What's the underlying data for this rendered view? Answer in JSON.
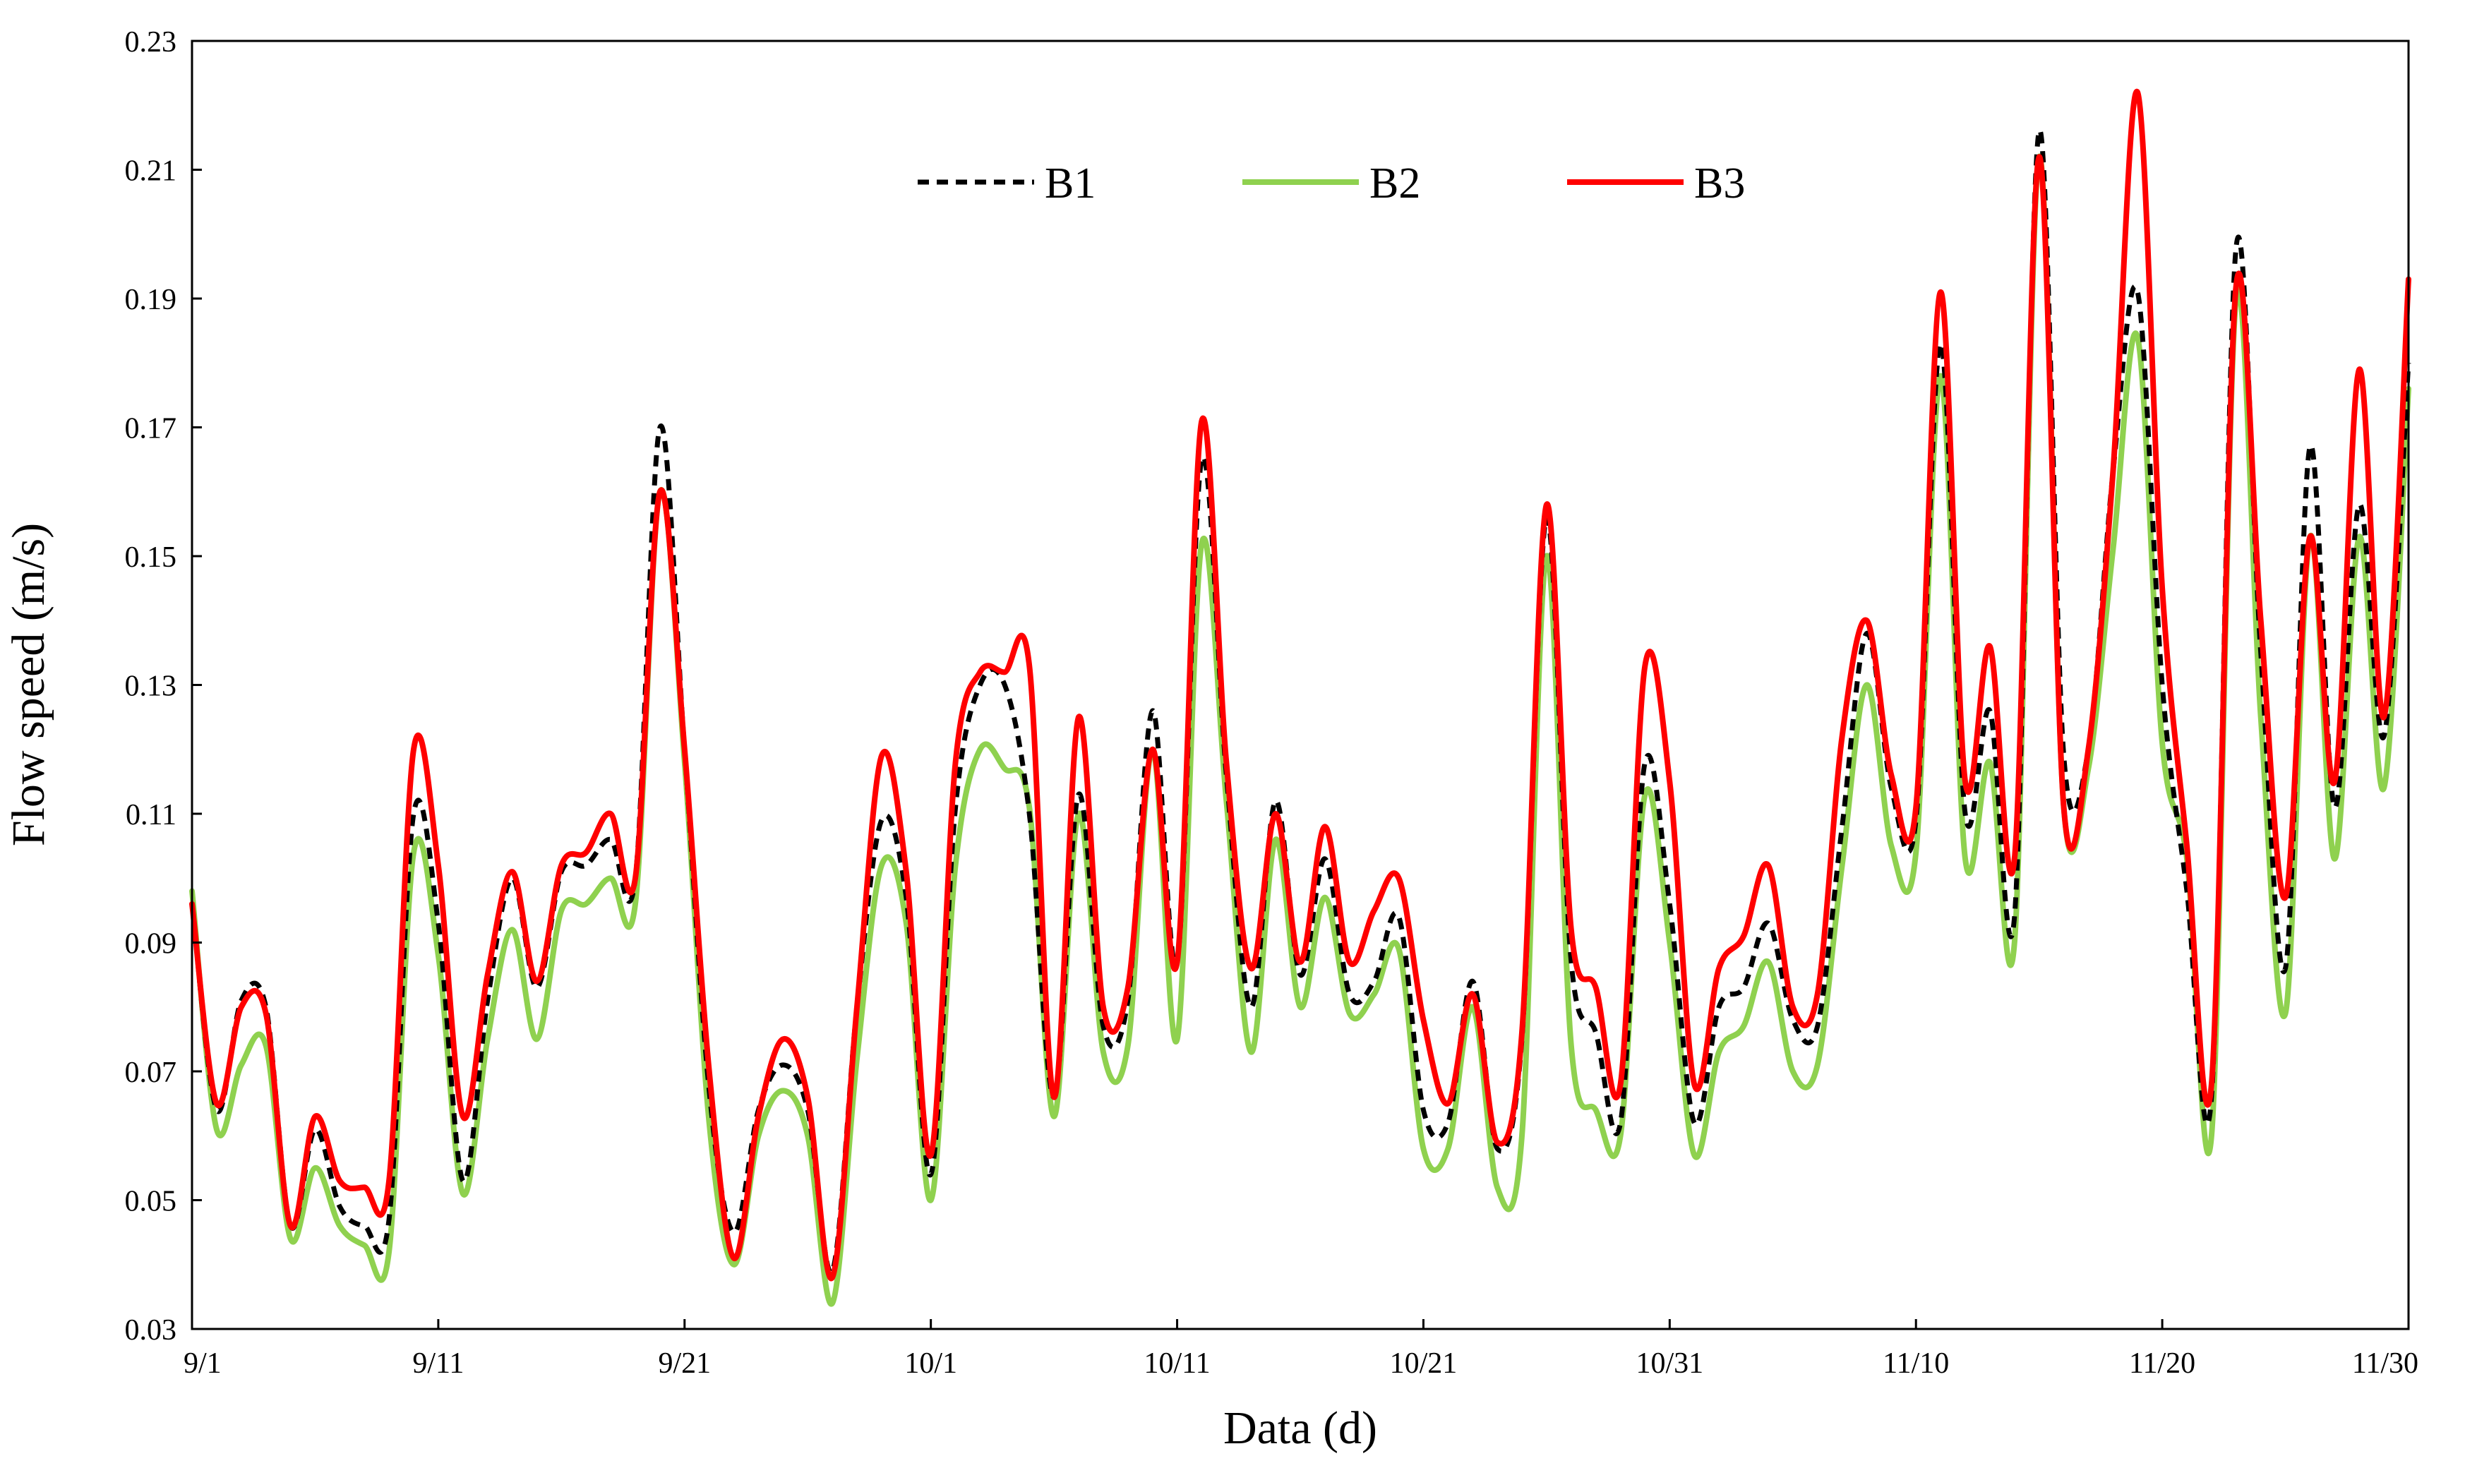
{
  "chart_data": {
    "type": "line",
    "title": "",
    "xlabel": "Data (d)",
    "ylabel": "Flow speed (m/s)",
    "xlim": [
      0,
      90
    ],
    "ylim": [
      0.03,
      0.23
    ],
    "x_ticks": [
      0,
      10,
      20,
      30,
      40,
      50,
      60,
      70,
      80,
      90
    ],
    "x_tick_labels": [
      "9/1",
      "9/11",
      "9/21",
      "10/1",
      "10/11",
      "10/21",
      "10/31",
      "11/10",
      "11/20",
      "11/30"
    ],
    "y_ticks": [
      0.03,
      0.05,
      0.07,
      0.09,
      0.11,
      0.13,
      0.15,
      0.17,
      0.19,
      0.21,
      0.23
    ],
    "y_tick_labels": [
      "0.03",
      "0.05",
      "0.07",
      "0.09",
      "0.11",
      "0.13",
      "0.15",
      "0.17",
      "0.19",
      "0.21",
      "0.23"
    ],
    "grid": false,
    "legend_position": "top-center",
    "x": [
      0,
      1,
      2,
      3,
      4,
      5,
      6,
      7,
      8,
      9,
      10,
      11,
      12,
      13,
      14,
      15,
      16,
      17,
      18,
      19,
      20,
      21,
      22,
      23,
      24,
      25,
      26,
      27,
      28,
      29,
      30,
      31,
      32,
      33,
      34,
      35,
      36,
      37,
      38,
      39,
      40,
      41,
      42,
      43,
      44,
      45,
      46,
      47,
      48,
      49,
      50,
      51,
      52,
      53,
      54,
      55,
      56,
      57,
      58,
      59,
      60,
      61,
      62,
      63,
      64,
      65,
      66,
      67,
      68,
      69,
      70,
      71,
      72,
      73,
      74,
      75,
      76,
      77,
      78,
      79,
      80,
      81,
      82,
      83,
      84,
      85,
      86,
      87,
      88,
      89,
      90
    ],
    "series": [
      {
        "name": "B1",
        "color": "#000000",
        "style": "dashed",
        "values": [
          0.096,
          0.064,
          0.081,
          0.08,
          0.046,
          0.061,
          0.049,
          0.046,
          0.047,
          0.11,
          0.093,
          0.053,
          0.081,
          0.1,
          0.083,
          0.101,
          0.102,
          0.106,
          0.1,
          0.17,
          0.12,
          0.067,
          0.045,
          0.064,
          0.071,
          0.064,
          0.039,
          0.08,
          0.109,
          0.097,
          0.054,
          0.111,
          0.13,
          0.13,
          0.11,
          0.066,
          0.113,
          0.077,
          0.081,
          0.126,
          0.087,
          0.165,
          0.116,
          0.08,
          0.112,
          0.085,
          0.103,
          0.082,
          0.084,
          0.094,
          0.064,
          0.062,
          0.084,
          0.058,
          0.075,
          0.156,
          0.087,
          0.076,
          0.062,
          0.118,
          0.096,
          0.062,
          0.08,
          0.083,
          0.093,
          0.078,
          0.077,
          0.108,
          0.138,
          0.114,
          0.109,
          0.183,
          0.11,
          0.126,
          0.094,
          0.216,
          0.119,
          0.12,
          0.163,
          0.191,
          0.13,
          0.098,
          0.066,
          0.198,
          0.135,
          0.086,
          0.167,
          0.111,
          0.158,
          0.122,
          0.18
        ]
      },
      {
        "name": "B2",
        "color": "#8fd14f",
        "style": "solid",
        "values": [
          0.098,
          0.061,
          0.071,
          0.074,
          0.044,
          0.055,
          0.046,
          0.043,
          0.042,
          0.104,
          0.088,
          0.051,
          0.075,
          0.092,
          0.075,
          0.095,
          0.096,
          0.1,
          0.096,
          0.16,
          0.118,
          0.062,
          0.04,
          0.06,
          0.067,
          0.06,
          0.034,
          0.072,
          0.102,
          0.093,
          0.05,
          0.102,
          0.12,
          0.117,
          0.111,
          0.063,
          0.11,
          0.073,
          0.074,
          0.12,
          0.075,
          0.152,
          0.112,
          0.073,
          0.106,
          0.08,
          0.097,
          0.079,
          0.082,
          0.089,
          0.058,
          0.058,
          0.08,
          0.052,
          0.06,
          0.15,
          0.074,
          0.064,
          0.06,
          0.113,
          0.09,
          0.057,
          0.073,
          0.077,
          0.087,
          0.07,
          0.071,
          0.102,
          0.13,
          0.105,
          0.104,
          0.178,
          0.103,
          0.118,
          0.09,
          0.212,
          0.111,
          0.117,
          0.151,
          0.184,
          0.121,
          0.103,
          0.06,
          0.19,
          0.125,
          0.079,
          0.153,
          0.103,
          0.153,
          0.114,
          0.176
        ]
      },
      {
        "name": "B3",
        "color": "#ff0000",
        "style": "solid",
        "values": [
          0.096,
          0.065,
          0.08,
          0.079,
          0.046,
          0.063,
          0.053,
          0.052,
          0.053,
          0.12,
          0.102,
          0.063,
          0.085,
          0.101,
          0.084,
          0.102,
          0.104,
          0.11,
          0.1,
          0.16,
          0.12,
          0.07,
          0.041,
          0.063,
          0.075,
          0.066,
          0.038,
          0.08,
          0.119,
          0.101,
          0.057,
          0.118,
          0.132,
          0.132,
          0.133,
          0.066,
          0.125,
          0.08,
          0.083,
          0.12,
          0.087,
          0.171,
          0.118,
          0.086,
          0.11,
          0.087,
          0.108,
          0.087,
          0.095,
          0.1,
          0.078,
          0.065,
          0.082,
          0.059,
          0.076,
          0.158,
          0.092,
          0.083,
          0.068,
          0.133,
          0.115,
          0.068,
          0.086,
          0.091,
          0.102,
          0.08,
          0.082,
          0.122,
          0.14,
          0.116,
          0.111,
          0.191,
          0.115,
          0.136,
          0.103,
          0.212,
          0.111,
          0.12,
          0.163,
          0.222,
          0.145,
          0.105,
          0.068,
          0.192,
          0.14,
          0.097,
          0.153,
          0.115,
          0.179,
          0.125,
          0.193
        ]
      }
    ]
  }
}
